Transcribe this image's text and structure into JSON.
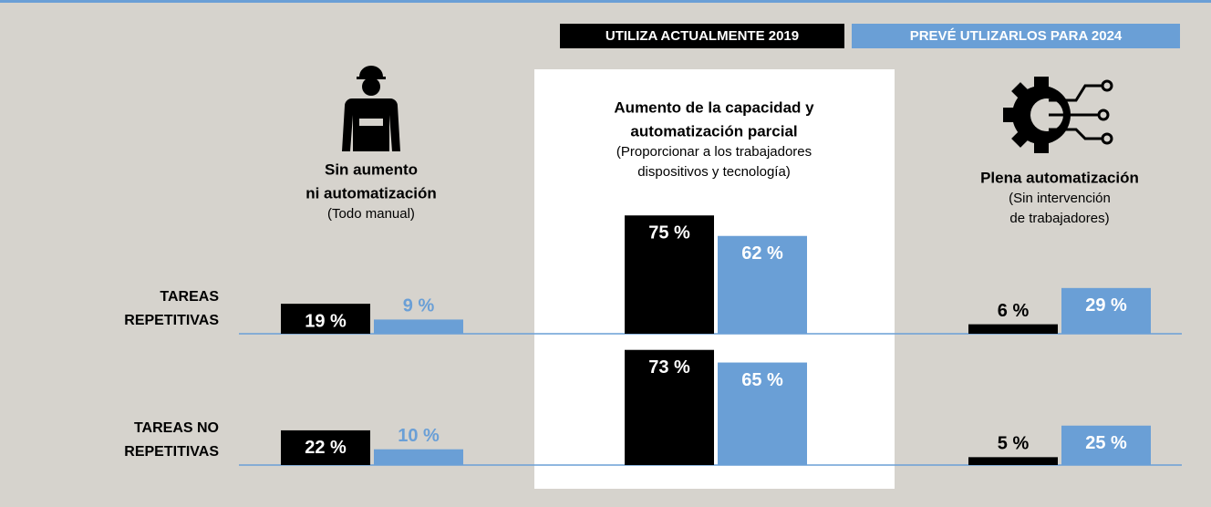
{
  "chart_data": {
    "type": "bar",
    "columns": [
      {
        "title": [
          "Sin aumento",
          "ni automatización"
        ],
        "subtitle": [
          "(Todo manual)"
        ]
      },
      {
        "title": [
          "Aumento de la capacidad y",
          "automatización parcial"
        ],
        "subtitle": [
          "(Proporcionar a los trabajadores",
          "dispositivos y tecnología)"
        ]
      },
      {
        "title": [
          "Plena automatización"
        ],
        "subtitle": [
          "(Sin intervención",
          "de trabajadores)"
        ]
      }
    ],
    "rows": [
      [
        "TAREAS",
        "REPETITIVAS"
      ],
      [
        "TAREAS NO",
        "REPETITIVAS"
      ]
    ],
    "series": [
      {
        "name": "UTILIZA ACTUALMENTE 2019",
        "color": "#000000",
        "values": [
          [
            19,
            75,
            6
          ],
          [
            22,
            73,
            5
          ]
        ],
        "value_labels": [
          [
            "19 %",
            "75 %",
            "6 %"
          ],
          [
            "22 %",
            "73 %",
            "5 %"
          ]
        ]
      },
      {
        "name": "PREVÉ UTLIZARLOS PARA 2024",
        "color": "#6a9fd6",
        "values": [
          [
            9,
            62,
            29
          ],
          [
            10,
            65,
            25
          ]
        ],
        "value_labels": [
          [
            "9 %",
            "62 %",
            "29 %"
          ],
          [
            "10 %",
            "65 %",
            "25 %"
          ]
        ]
      }
    ]
  }
}
